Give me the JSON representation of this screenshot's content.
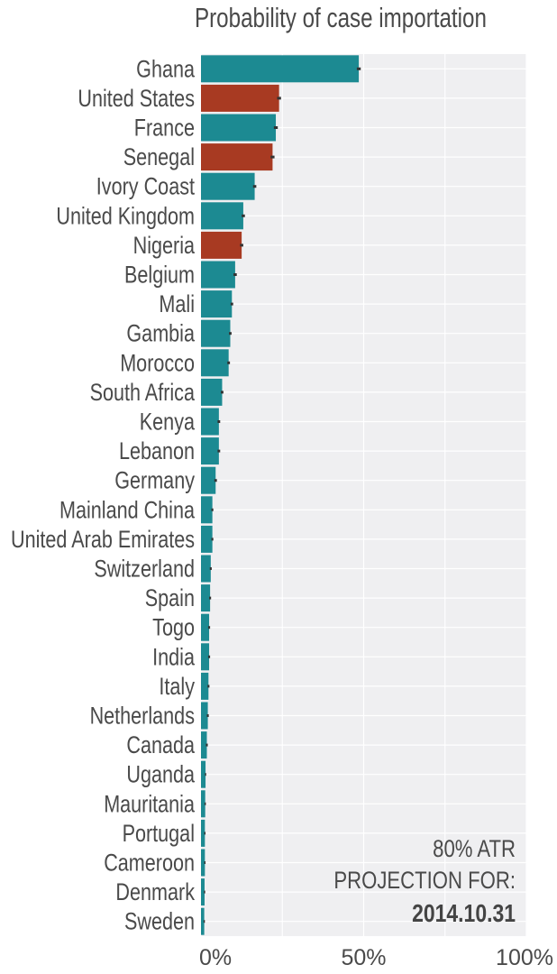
{
  "chart_data": {
    "type": "bar",
    "orientation": "horizontal",
    "title": "Probability of case importation",
    "categories": [
      "Ghana",
      "United States",
      "France",
      "Senegal",
      "Ivory Coast",
      "United Kingdom",
      "Nigeria",
      "Belgium",
      "Mali",
      "Gambia",
      "Morocco",
      "South Africa",
      "Kenya",
      "Lebanon",
      "Germany",
      "Mainland China",
      "United Arab Emirates",
      "Switzerland",
      "Spain",
      "Togo",
      "India",
      "Italy",
      "Netherlands",
      "Canada",
      "Uganda",
      "Mauritania",
      "Portugal",
      "Cameroon",
      "Denmark",
      "Sweden"
    ],
    "values": [
      48.5,
      24,
      23,
      22,
      16.5,
      13,
      12.5,
      10.5,
      9.5,
      9,
      8.5,
      6.5,
      5.5,
      5.5,
      4.5,
      3.5,
      3.5,
      3,
      2.8,
      2.5,
      2.5,
      2.3,
      2.1,
      1.8,
      1.4,
      1.3,
      1.2,
      1.2,
      1.1,
      1.0
    ],
    "errors": [
      0.6,
      0.6,
      0.6,
      0.6,
      0.5,
      0.5,
      0.5,
      0.5,
      0.4,
      0.4,
      0.4,
      0.4,
      0.4,
      0.4,
      0.4,
      0.3,
      0.3,
      0.3,
      0.3,
      0.3,
      0.3,
      0.3,
      0.3,
      0.3,
      0.2,
      0.2,
      0.2,
      0.2,
      0.2,
      0.2
    ],
    "highlighted": [
      "United States",
      "Senegal",
      "Nigeria"
    ],
    "colors": {
      "default": "#1c8a92",
      "highlight": "#a83a22",
      "background": "#efeff1",
      "grid": "#ffffff",
      "error": "#333333"
    },
    "xlim": [
      0,
      100
    ],
    "xticks": [
      0,
      50,
      100
    ],
    "xtick_labels": [
      "0%",
      "50%",
      "100%"
    ],
    "grid": true,
    "annotation": {
      "line1": "80% ATR",
      "line2": "PROJECTION FOR:",
      "date": "2014.10.31"
    }
  }
}
